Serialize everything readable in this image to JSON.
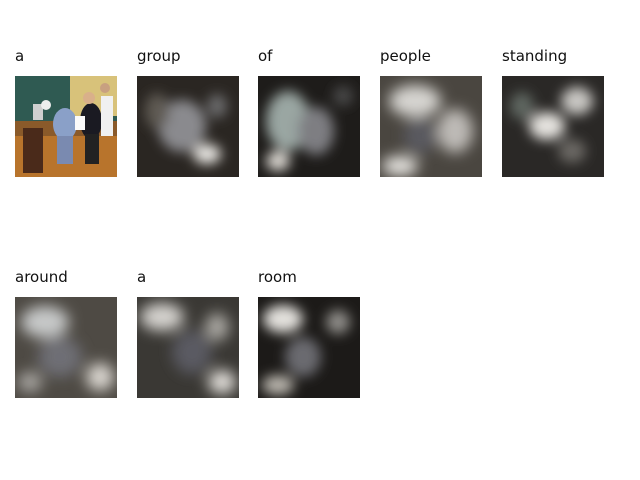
{
  "panels": [
    {
      "word": "a",
      "type": "original"
    },
    {
      "word": "group",
      "type": "attention"
    },
    {
      "word": "of",
      "type": "attention"
    },
    {
      "word": "people",
      "type": "attention"
    },
    {
      "word": "standing",
      "type": "attention"
    },
    {
      "word": "around",
      "type": "attention"
    },
    {
      "word": "a",
      "type": "attention"
    },
    {
      "word": "room",
      "type": "attention"
    }
  ]
}
